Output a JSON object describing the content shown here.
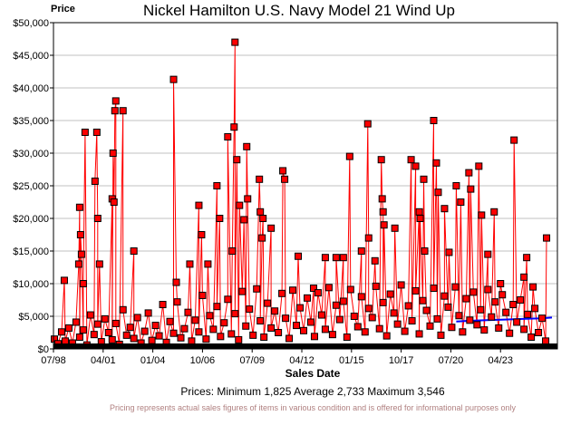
{
  "chart_data": {
    "type": "line",
    "title": "Nickel Hamilton U.S. Navy Model 21 Wind Up",
    "xlabel": "Sales Date",
    "ylabel": "Price",
    "xlim": [
      1998.5,
      2026.4
    ],
    "ylim": [
      0,
      50000
    ],
    "grid": true,
    "yticks": [
      0,
      5000,
      10000,
      15000,
      20000,
      25000,
      30000,
      35000,
      40000,
      45000,
      50000
    ],
    "ytick_labels": [
      "$0",
      "$5,000",
      "$10,000",
      "$15,000",
      "$20,000",
      "$25,000",
      "$30,000",
      "$35,000",
      "$40,000",
      "$45,000",
      "$50,000"
    ],
    "xticks": [
      1998.5,
      2001.25,
      2004.0,
      2006.75,
      2009.5,
      2012.25,
      2015.0,
      2017.75,
      2020.5,
      2023.25
    ],
    "xtick_labels": [
      "07/98",
      "04/01",
      "01/04",
      "10/06",
      "07/09",
      "04/12",
      "01/15",
      "10/17",
      "07/20",
      "04/23"
    ],
    "series_colors": {
      "sales": "#ff0000",
      "marker_border": "#000000",
      "average": "#0000ff"
    },
    "peak_sales": [
      [
        1999.1,
        10500
      ],
      [
        1999.9,
        13000
      ],
      [
        1999.95,
        21700
      ],
      [
        2000.0,
        17500
      ],
      [
        2000.05,
        14500
      ],
      [
        2000.15,
        10000
      ],
      [
        2000.25,
        33200
      ],
      [
        2000.8,
        25700
      ],
      [
        2000.9,
        33200
      ],
      [
        2000.95,
        20000
      ],
      [
        2001.05,
        13000
      ],
      [
        2001.75,
        23000
      ],
      [
        2001.8,
        30000
      ],
      [
        2001.85,
        22500
      ],
      [
        2001.9,
        36500
      ],
      [
        2001.95,
        38000
      ],
      [
        2002.35,
        36500
      ],
      [
        2002.95,
        15000
      ],
      [
        2005.15,
        41300
      ],
      [
        2005.3,
        10200
      ],
      [
        2006.05,
        13000
      ],
      [
        2006.55,
        22000
      ],
      [
        2006.7,
        17500
      ],
      [
        2007.05,
        13000
      ],
      [
        2007.55,
        25000
      ],
      [
        2007.7,
        20000
      ],
      [
        2008.15,
        32500
      ],
      [
        2008.4,
        15000
      ],
      [
        2008.5,
        34000
      ],
      [
        2008.55,
        47000
      ],
      [
        2008.65,
        29000
      ],
      [
        2008.8,
        22000
      ],
      [
        2009.05,
        19800
      ],
      [
        2009.2,
        31000
      ],
      [
        2009.25,
        23000
      ],
      [
        2009.9,
        26000
      ],
      [
        2009.95,
        21000
      ],
      [
        2010.05,
        17000
      ],
      [
        2010.1,
        20000
      ],
      [
        2010.55,
        18500
      ],
      [
        2011.2,
        27300
      ],
      [
        2011.3,
        26000
      ],
      [
        2012.05,
        14200
      ],
      [
        2012.9,
        9300
      ],
      [
        2013.55,
        14000
      ],
      [
        2014.15,
        14000
      ],
      [
        2014.55,
        14000
      ],
      [
        2014.9,
        29500
      ],
      [
        2015.55,
        15000
      ],
      [
        2015.9,
        34500
      ],
      [
        2015.95,
        17000
      ],
      [
        2016.3,
        13500
      ],
      [
        2016.65,
        29000
      ],
      [
        2016.7,
        23000
      ],
      [
        2016.75,
        21000
      ],
      [
        2016.8,
        19000
      ],
      [
        2017.4,
        18500
      ],
      [
        2018.3,
        29000
      ],
      [
        2018.55,
        28000
      ],
      [
        2018.75,
        21000
      ],
      [
        2018.8,
        20000
      ],
      [
        2019.0,
        26000
      ],
      [
        2019.05,
        15000
      ],
      [
        2019.55,
        35000
      ],
      [
        2019.7,
        28500
      ],
      [
        2019.8,
        24000
      ],
      [
        2020.15,
        21500
      ],
      [
        2020.4,
        14800
      ],
      [
        2020.8,
        25000
      ],
      [
        2021.05,
        22500
      ],
      [
        2021.5,
        27000
      ],
      [
        2021.6,
        24500
      ],
      [
        2022.05,
        28000
      ],
      [
        2022.2,
        20500
      ],
      [
        2022.55,
        14500
      ],
      [
        2022.9,
        21000
      ],
      [
        2023.25,
        10000
      ],
      [
        2024.0,
        32000
      ],
      [
        2024.55,
        11000
      ],
      [
        2024.7,
        14000
      ],
      [
        2025.05,
        9500
      ],
      [
        2025.8,
        17000
      ]
    ],
    "base_sales": {
      "start": 1998.55,
      "step": 0.2,
      "values": [
        1500,
        800,
        2600,
        1200,
        3200,
        900,
        4100,
        1800,
        2900,
        600,
        5200,
        2200,
        3800,
        1100,
        4600,
        2500,
        1400,
        3900,
        700,
        6000,
        2100,
        3300,
        1600,
        4800,
        900,
        2700,
        5500,
        1300,
        3600,
        2000,
        6800,
        1000,
        4200,
        2400,
        7200,
        1700,
        3100,
        5600,
        1200,
        4400,
        2600,
        8200,
        1500,
        5100,
        3000,
        6500,
        1900,
        4000,
        7600,
        2300,
        5400,
        1400,
        8800,
        3500,
        6100,
        2100,
        9200,
        4300,
        1800,
        7000,
        3200,
        5800,
        2500,
        8500,
        4700,
        1600,
        9000,
        3600,
        6300,
        2800,
        7800,
        4100,
        1900,
        8600,
        5200,
        3000,
        9400,
        2200,
        6700,
        4500,
        7300,
        1800,
        9100,
        5000,
        3400,
        8000,
        2600,
        6200,
        4800,
        9600,
        3100,
        7100,
        2000,
        8400,
        5500,
        3800,
        9800,
        2700,
        6600,
        4300,
        8900,
        2300,
        7400,
        5900,
        3500,
        9300,
        4600,
        2100,
        8100,
        6400,
        3300,
        9500,
        5100,
        2600,
        7700,
        4400,
        8700,
        3700,
        6000,
        2900,
        9100,
        4900,
        7200,
        3200,
        8300,
        5600,
        2400,
        6800,
        4100,
        7500,
        3000,
        5300,
        1800,
        6200,
        2500,
        4700,
        1200
      ]
    },
    "average_line": [
      [
        2020.8,
        4200
      ],
      [
        2021.5,
        4300
      ],
      [
        2022.5,
        4400
      ],
      [
        2023.5,
        4500
      ],
      [
        2024.5,
        4600
      ],
      [
        2025.5,
        4700
      ],
      [
        2026.1,
        4800
      ]
    ]
  },
  "stats_text": "Prices:  Minimum 1,825 Average 2,733 Maximum 3,546",
  "note": "Pricing represents actual sales figures of items in various condition and is offered for informational purposes only"
}
